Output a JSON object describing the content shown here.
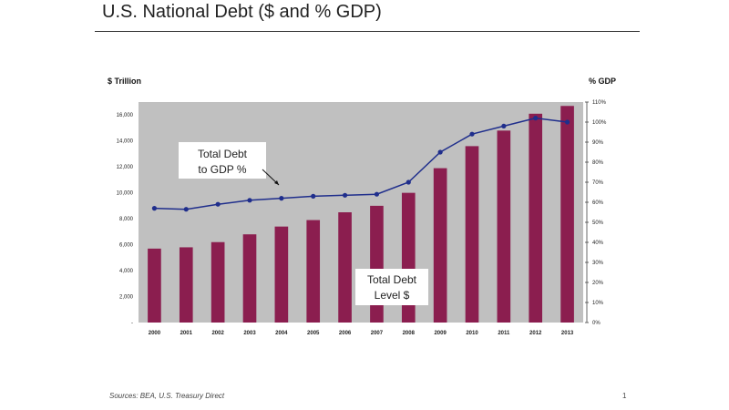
{
  "page": {
    "title": "U.S. National Debt ($ and % GDP)",
    "source": "Sources: BEA, U.S. Treasury Direct",
    "page_number": "1"
  },
  "colors": {
    "plot_background": "#c0c0c0",
    "bar_fill": "#8b1e4f",
    "line_color": "#1f2e8c"
  },
  "chart_data": {
    "type": "bar",
    "title": "U.S. National Debt ($ and % GDP)",
    "categories": [
      "2000",
      "2001",
      "2002",
      "2003",
      "2004",
      "2005",
      "2006",
      "2007",
      "2008",
      "2009",
      "2010",
      "2011",
      "2012",
      "2013"
    ],
    "ylabel": "$ Trillion",
    "y2label": "% GDP",
    "ylim": [
      0,
      17000
    ],
    "y2lim": [
      0,
      110
    ],
    "y_ticks": [
      "-",
      "2,000",
      "4,000",
      "6,000",
      "8,000",
      "10,000",
      "12,000",
      "14,000",
      "16,000"
    ],
    "y2_ticks": [
      "0%",
      "10%",
      "20%",
      "30%",
      "40%",
      "50%",
      "60%",
      "70%",
      "80%",
      "90%",
      "100%",
      "110%"
    ],
    "series": [
      {
        "name": "Total Debt Level $",
        "type": "bar",
        "axis": "left",
        "values": [
          5700,
          5800,
          6200,
          6800,
          7400,
          7900,
          8500,
          9000,
          10000,
          11900,
          13600,
          14800,
          16100,
          16700
        ]
      },
      {
        "name": "Total Debt to GDP %",
        "type": "line",
        "axis": "right",
        "values": [
          57,
          56.5,
          59,
          61,
          62,
          63,
          63.5,
          64,
          70,
          85,
          94,
          98,
          102,
          100
        ]
      }
    ],
    "annotations": {
      "line_label": [
        "Total Debt",
        "to GDP %"
      ],
      "bar_label": [
        "Total Debt",
        "Level $"
      ]
    }
  }
}
